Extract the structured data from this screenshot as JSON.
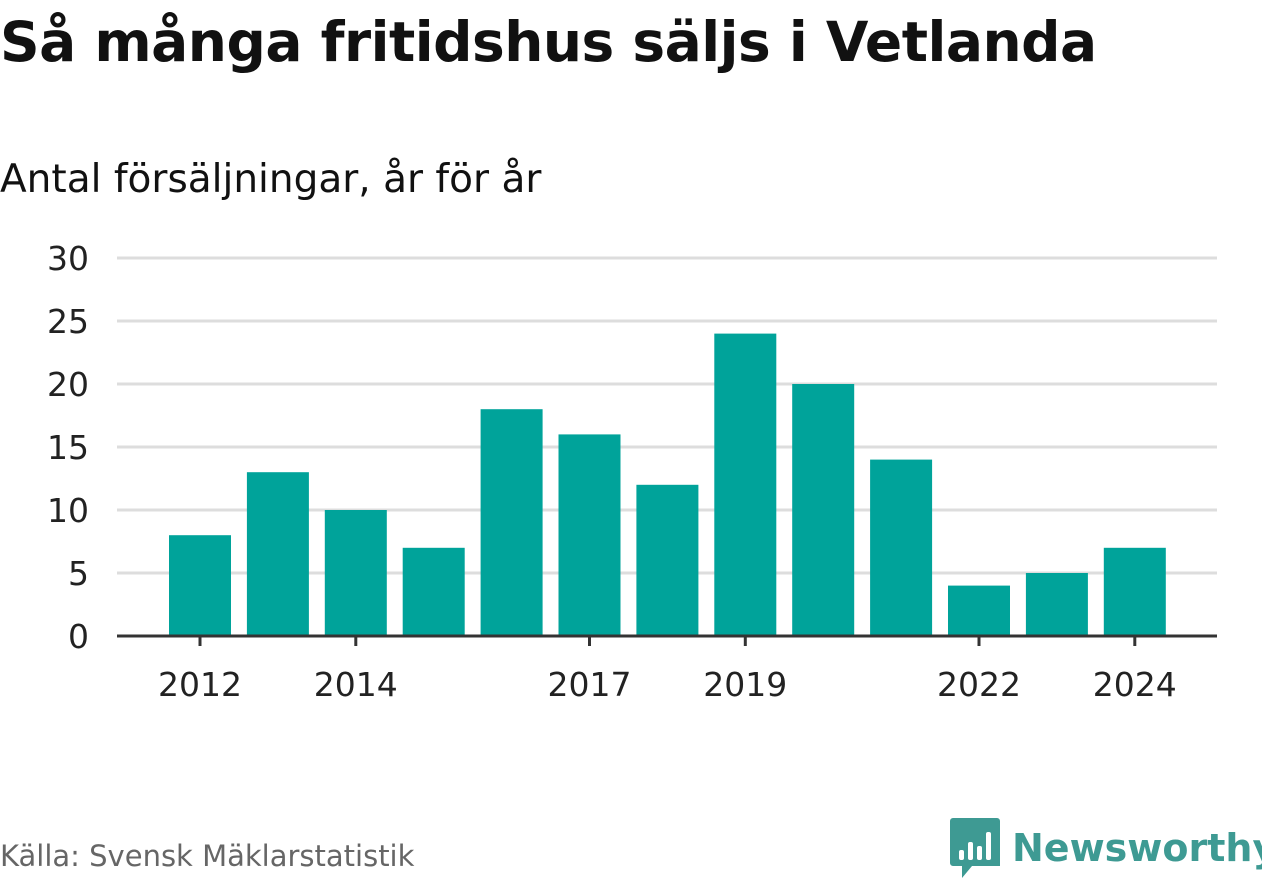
{
  "header": {
    "title": "Så många fritidshus säljs i Vetlanda",
    "subtitle": "Antal försäljningar, år för år"
  },
  "footer": {
    "source": "Källa: Svensk Mäklarstatistik",
    "brand": "Newsworthy",
    "brand_icon": "bar-chart-speech-icon"
  },
  "colors": {
    "bar": "#00a39a",
    "grid": "#dddddd",
    "axis": "#333333",
    "tick_text": "#222222",
    "brand": "#3e9a93"
  },
  "chart_data": {
    "type": "bar",
    "title": "Så många fritidshus säljs i Vetlanda",
    "subtitle": "Antal försäljningar, år för år",
    "xlabel": "",
    "ylabel": "",
    "categories": [
      "2012",
      "2013",
      "2014",
      "2015",
      "2016",
      "2017",
      "2018",
      "2019",
      "2020",
      "2021",
      "2022",
      "2023",
      "2024"
    ],
    "values": [
      8,
      13,
      10,
      7,
      18,
      16,
      12,
      24,
      20,
      14,
      4,
      5,
      7
    ],
    "x_tick_labels": [
      "2012",
      "2014",
      "2017",
      "2019",
      "2022",
      "2024"
    ],
    "y_ticks": [
      0,
      5,
      10,
      15,
      20,
      25,
      30
    ],
    "ylim": [
      0,
      30
    ],
    "grid": true,
    "legend": "none"
  }
}
